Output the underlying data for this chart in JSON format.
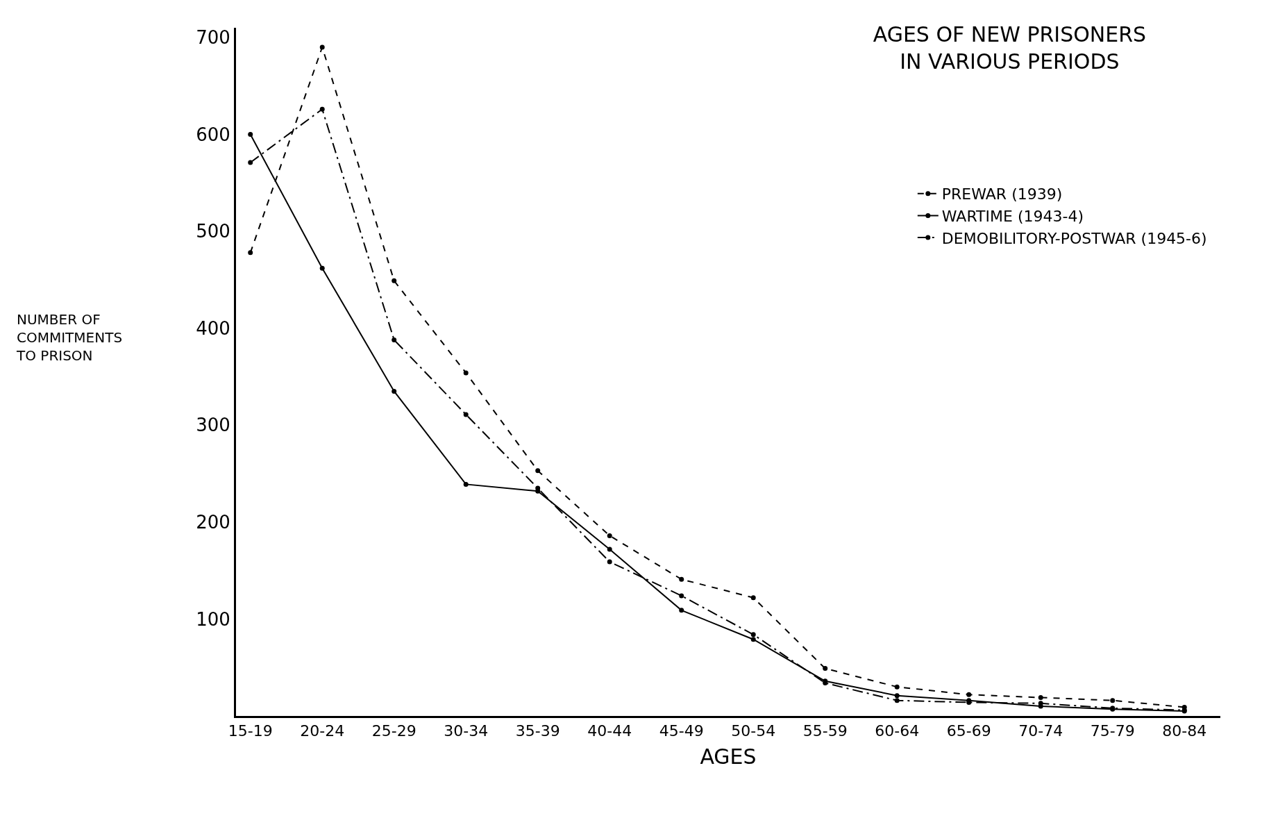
{
  "chart_data": {
    "type": "line",
    "title": "AGES OF NEW PRISONERS\nIN VARIOUS PERIODS",
    "xlabel": "AGES",
    "annotations": [
      "NUMBER OF\nCOMMITMENTS\nTO PRISON"
    ],
    "categories": [
      "15-19",
      "20-24",
      "25-29",
      "30-34",
      "35-39",
      "40-44",
      "45-49",
      "50-54",
      "55-59",
      "60-64",
      "65-69",
      "70-74",
      "75-79",
      "80-84"
    ],
    "series": [
      {
        "name": "PREWAR (1939)",
        "color": "#000000",
        "line_style": "dashed",
        "values": [
          478,
          690,
          449,
          354,
          253,
          186,
          141,
          122,
          49,
          30,
          22,
          19,
          16,
          9
        ]
      },
      {
        "name": "WARTIME (1943-4)",
        "color": "#000000",
        "line_style": "solid",
        "values": [
          600,
          462,
          335,
          239,
          232,
          172,
          109,
          79,
          36,
          21,
          16,
          10,
          7,
          5
        ]
      },
      {
        "name": "DEMOBILITORY-POSTWAR (1945-6)",
        "color": "#000000",
        "line_style": "dashdot",
        "values": [
          571,
          626,
          388,
          311,
          235,
          159,
          124,
          84,
          34,
          16,
          14,
          13,
          8,
          6
        ]
      }
    ],
    "ylim": [
      0,
      710
    ],
    "yticks": [
      100,
      200,
      300,
      400,
      500,
      600,
      700
    ],
    "legend": "top right",
    "marker": "circle"
  }
}
